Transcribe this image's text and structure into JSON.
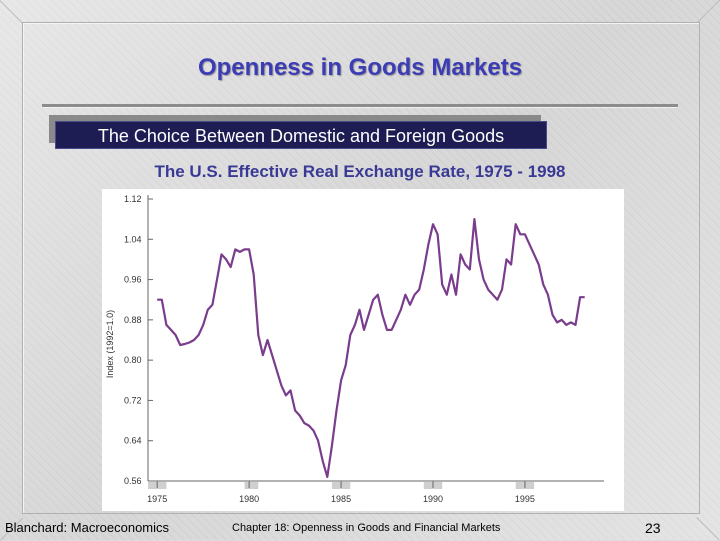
{
  "slide": {
    "title": "Openness in Goods Markets",
    "subtitle": "The Choice Between Domestic and Foreign Goods",
    "footer_left": "Blanchard: Macroeconomics",
    "footer_center": "Chapter 18: Openness in Goods and Financial Markets",
    "page_number": "23"
  },
  "colors": {
    "title": "#3c3cb4",
    "subtitle_bg": "#1d1d54",
    "chart_title": "#3a3a96",
    "line": "#7a3c8c",
    "shade": "#cfcfcf"
  },
  "chart_data": {
    "type": "line",
    "title": "The U.S. Effective Real Exchange Rate, 1975 - 1998",
    "ylabel": "Index (1992=1.0)",
    "xlabel": "",
    "ylim": [
      0.56,
      1.12
    ],
    "xlim": [
      1974.5,
      1999.3
    ],
    "yticks": [
      "1.12",
      "1.04",
      "0.96",
      "0.88",
      "0.80",
      "0.72",
      "0.64",
      "0.56"
    ],
    "ytick_values": [
      1.12,
      1.04,
      0.96,
      0.88,
      0.8,
      0.72,
      0.64,
      0.56
    ],
    "xticks": [
      "1975",
      "1980",
      "1985",
      "1990",
      "1995"
    ],
    "xtick_values": [
      1975,
      1980,
      1985,
      1990,
      1995
    ],
    "grid": false,
    "legend": "none",
    "series": [
      {
        "x": [
          1975.0,
          1975.25,
          1975.5,
          1975.75,
          1976.0,
          1976.25,
          1976.5,
          1976.75,
          1977.0,
          1977.25,
          1977.5,
          1977.75,
          1978.0,
          1978.25,
          1978.5,
          1978.75,
          1979.0,
          1979.25,
          1979.5,
          1979.75,
          1980.0,
          1980.25,
          1980.5,
          1980.75,
          1981.0,
          1981.25,
          1981.5,
          1981.75,
          1982.0,
          1982.25,
          1982.5,
          1982.75,
          1983.0,
          1983.25,
          1983.5,
          1983.75,
          1984.0,
          1984.25,
          1984.5,
          1984.75,
          1985.0,
          1985.25,
          1985.5,
          1985.75,
          1986.0,
          1986.25,
          1986.5,
          1986.75,
          1987.0,
          1987.25,
          1987.5,
          1987.75,
          1988.0,
          1988.25,
          1988.5,
          1988.75,
          1989.0,
          1989.25,
          1989.5,
          1989.75,
          1990.0,
          1990.25,
          1990.5,
          1990.75,
          1991.0,
          1991.25,
          1991.5,
          1991.75,
          1992.0,
          1992.25,
          1992.5,
          1992.75,
          1993.0,
          1993.25,
          1993.5,
          1993.75,
          1994.0,
          1994.25,
          1994.5,
          1994.75,
          1995.0,
          1995.25,
          1995.5,
          1995.75,
          1996.0,
          1996.25,
          1996.5,
          1996.75,
          1997.0,
          1997.25,
          1997.5,
          1997.75,
          1998.0,
          1998.25
        ],
        "y": [
          0.92,
          0.92,
          0.87,
          0.86,
          0.85,
          0.83,
          0.832,
          0.835,
          0.84,
          0.85,
          0.87,
          0.9,
          0.91,
          0.96,
          1.01,
          1.0,
          0.985,
          1.02,
          1.015,
          1.02,
          1.02,
          0.97,
          0.85,
          0.81,
          0.84,
          0.81,
          0.78,
          0.75,
          0.73,
          0.74,
          0.7,
          0.69,
          0.675,
          0.67,
          0.66,
          0.64,
          0.6,
          0.568,
          0.63,
          0.7,
          0.76,
          0.79,
          0.85,
          0.87,
          0.9,
          0.86,
          0.89,
          0.92,
          0.93,
          0.89,
          0.86,
          0.86,
          0.88,
          0.9,
          0.93,
          0.91,
          0.93,
          0.94,
          0.98,
          1.03,
          1.07,
          1.05,
          0.95,
          0.93,
          0.97,
          0.93,
          1.01,
          0.99,
          0.98,
          1.08,
          1.0,
          0.96,
          0.94,
          0.93,
          0.92,
          0.94,
          1.0,
          0.99,
          1.07,
          1.05,
          1.05,
          1.03,
          1.01,
          0.99,
          0.95,
          0.93,
          0.89,
          0.875,
          0.88,
          0.87,
          0.875,
          0.87,
          0.925,
          0.925
        ]
      }
    ],
    "shaded_periods": [
      [
        1974.5,
        1975.5
      ],
      [
        1979.75,
        1980.5
      ],
      [
        1984.5,
        1985.5
      ],
      [
        1989.5,
        1990.5
      ],
      [
        1994.5,
        1995.5
      ]
    ]
  }
}
